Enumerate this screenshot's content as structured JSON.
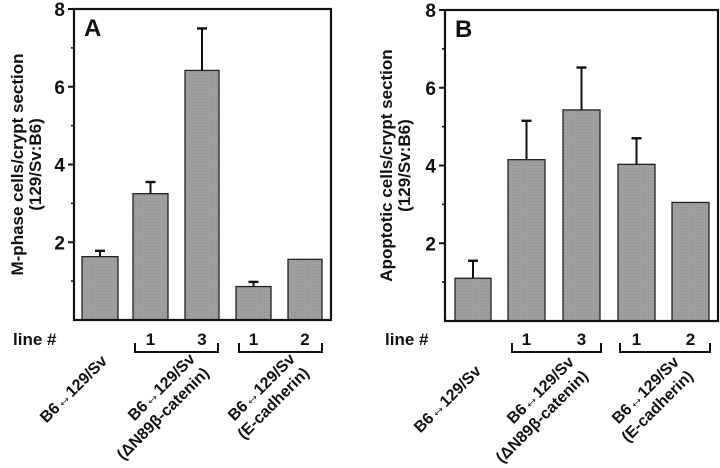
{
  "chart_data": [
    {
      "type": "bar",
      "panel": "A",
      "title": "",
      "xlabel": "",
      "ylabel": [
        "M-phase cells/crypt section",
        "(129/Sv:B6)"
      ],
      "ylim": [
        0,
        8
      ],
      "yticks": [
        2,
        4,
        6,
        8
      ],
      "yminor_ticks": [
        1,
        3,
        5,
        7
      ],
      "grid": false,
      "categories": [
        "B6↔129/Sv",
        "B6↔129/Sv (ΔN89β-catenin) line 1",
        "B6↔129/Sv (ΔN89β-catenin) line 3",
        "B6↔129/Sv (E-cadherin) line 1",
        "B6↔129/Sv (E-cadherin) line 2"
      ],
      "values": [
        1.63,
        3.25,
        6.42,
        0.86,
        1.56
      ],
      "error_upper": [
        1.78,
        3.55,
        7.5,
        0.98,
        null
      ],
      "line_numbers": [
        "",
        "1",
        "3",
        "1",
        "2"
      ],
      "line_label": "line #",
      "groups": [
        {
          "label_lines": [
            "B6↔129/Sv"
          ],
          "bars": [
            0
          ]
        },
        {
          "label_lines": [
            "B6↔129/Sv",
            "(ΔN89β-catenin)"
          ],
          "bars": [
            1,
            2
          ]
        },
        {
          "label_lines": [
            "B6↔129/Sv",
            "(E-cadherin)"
          ],
          "bars": [
            3,
            4
          ]
        }
      ],
      "bar_color": "#9a9a9a"
    },
    {
      "type": "bar",
      "panel": "B",
      "title": "",
      "xlabel": "",
      "ylabel": [
        "Apoptotic cells/crypt section",
        "(129/Sv:B6)"
      ],
      "ylim": [
        0,
        8
      ],
      "yticks": [
        2,
        4,
        6,
        8
      ],
      "yminor_ticks": [
        1,
        3,
        5,
        7
      ],
      "grid": false,
      "categories": [
        "B6↔129/Sv",
        "B6↔129/Sv (ΔN89β-catenin) line 1",
        "B6↔129/Sv (ΔN89β-catenin) line 3",
        "B6↔129/Sv (E-cadherin) line 1",
        "B6↔129/Sv (E-cadherin) line 2"
      ],
      "values": [
        1.1,
        4.15,
        5.43,
        4.03,
        3.05
      ],
      "error_upper": [
        1.55,
        5.15,
        6.52,
        4.7,
        null
      ],
      "line_numbers": [
        "",
        "1",
        "3",
        "1",
        "2"
      ],
      "line_label": "line #",
      "groups": [
        {
          "label_lines": [
            "B6↔129/Sv"
          ],
          "bars": [
            0
          ]
        },
        {
          "label_lines": [
            "B6↔129/Sv",
            "(ΔN89β-catenin)"
          ],
          "bars": [
            1,
            2
          ]
        },
        {
          "label_lines": [
            "B6↔129/Sv",
            "(E-cadherin)"
          ],
          "bars": [
            3,
            4
          ]
        }
      ],
      "bar_color": "#9a9a9a"
    }
  ]
}
